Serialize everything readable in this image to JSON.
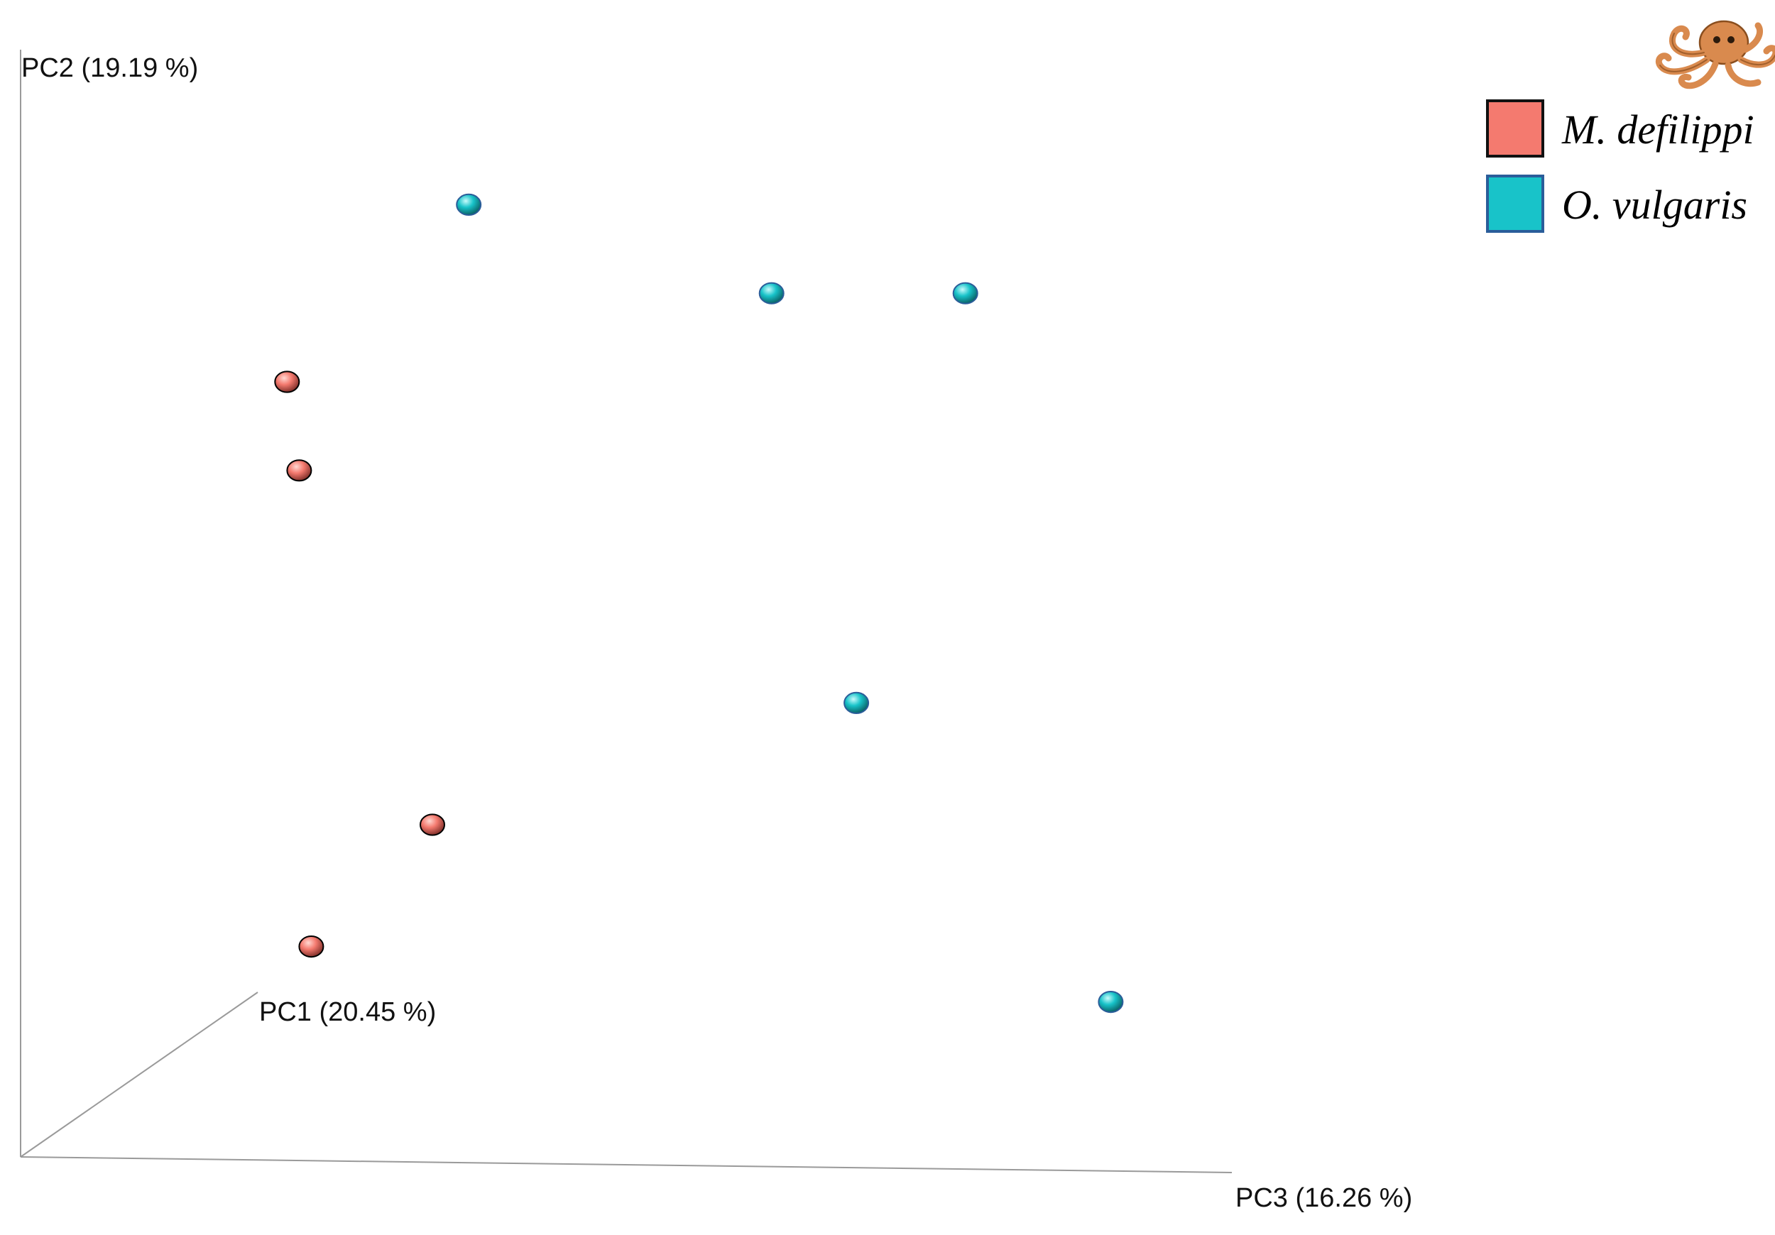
{
  "chart_data": {
    "type": "scatter",
    "projection": "3d",
    "axes": {
      "x": {
        "label": "PC1 (20.45 %)"
      },
      "y": {
        "label": "PC2 (19.19 %)"
      },
      "z": {
        "label": "PC3 (16.26 %)"
      }
    },
    "legend": {
      "position": "top-right"
    },
    "series": [
      {
        "name": "M. defilippi",
        "color": "#f47a6f",
        "border": "#000000",
        "points": [
          {
            "pc3": 0.22,
            "pc2": 0.7
          },
          {
            "pc3": 0.23,
            "pc2": 0.62
          },
          {
            "pc3": 0.34,
            "pc2": 0.3
          },
          {
            "pc3": 0.24,
            "pc2": 0.19
          }
        ]
      },
      {
        "name": "O. vulgaris",
        "color": "#18c3c9",
        "border": "#2b5d9a",
        "points": [
          {
            "pc3": 0.37,
            "pc2": 0.86
          },
          {
            "pc3": 0.62,
            "pc2": 0.78
          },
          {
            "pc3": 0.78,
            "pc2": 0.78
          },
          {
            "pc3": 0.69,
            "pc2": 0.41
          },
          {
            "pc3": 0.9,
            "pc2": 0.14
          }
        ]
      }
    ]
  },
  "legend_items": [
    {
      "label": "M. defilippi",
      "color": "#f47a6f",
      "border": "#111111"
    },
    {
      "label": "O. vulgaris",
      "color": "#18c3c9",
      "border": "#2b5d9a"
    }
  ],
  "logo": {
    "icon": "octopus-icon",
    "color": "#d98a4e"
  }
}
